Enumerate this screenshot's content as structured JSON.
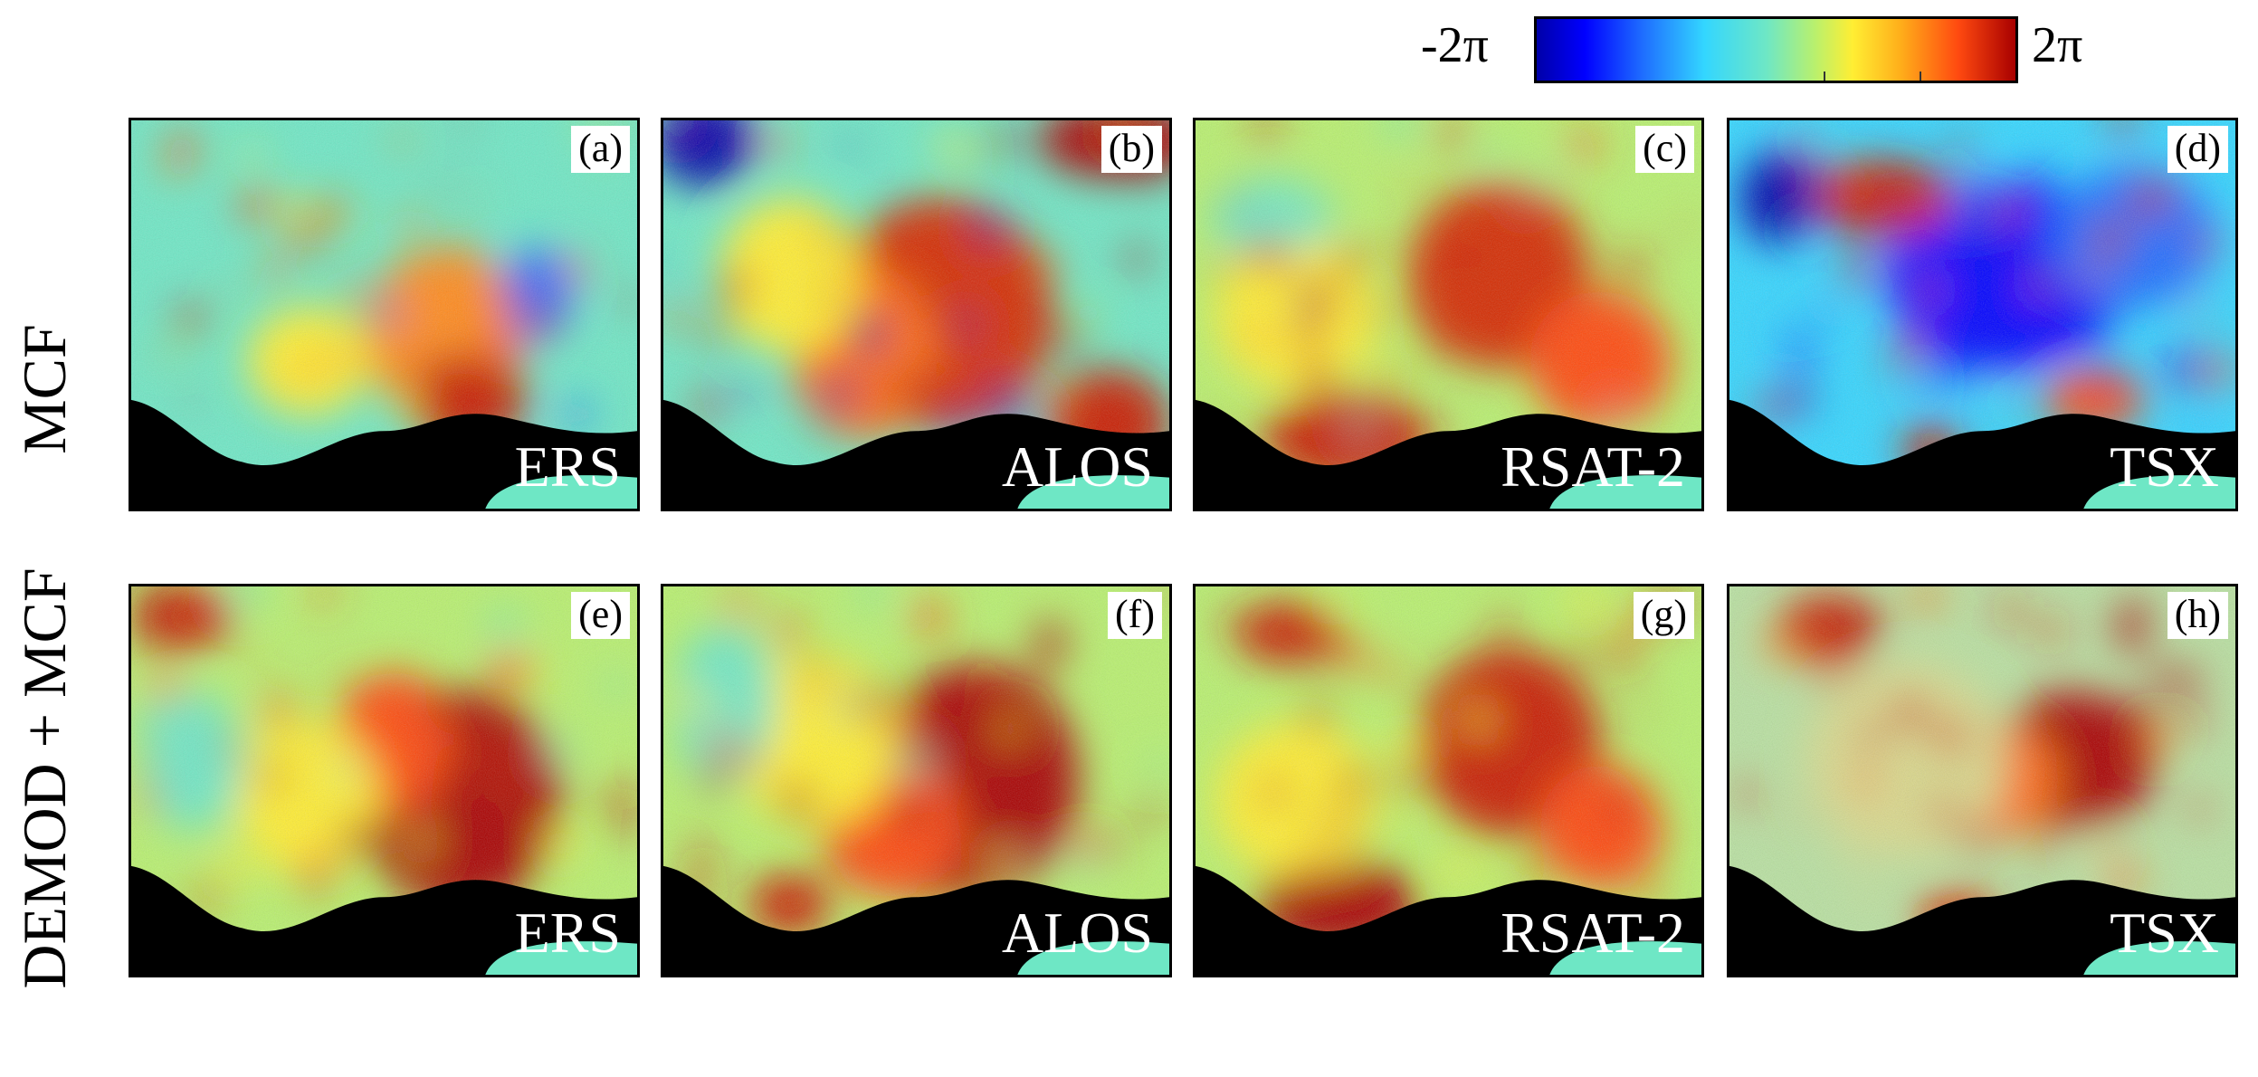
{
  "colorbar": {
    "min_label": "-2π",
    "max_label": "2π",
    "colors": [
      "#0000a8",
      "#0000ff",
      "#1e6cff",
      "#33d6ff",
      "#6ee7c5",
      "#b8f06e",
      "#ffee33",
      "#ffae1a",
      "#ff4a10",
      "#a80000"
    ]
  },
  "rows": [
    {
      "label": "MCF"
    },
    {
      "label": "DEMOD + MCF"
    }
  ],
  "panels": [
    {
      "letter": "(a)",
      "sensor": "ERS"
    },
    {
      "letter": "(b)",
      "sensor": "ALOS"
    },
    {
      "letter": "(c)",
      "sensor": "RSAT-2"
    },
    {
      "letter": "(d)",
      "sensor": "TSX"
    },
    {
      "letter": "(e)",
      "sensor": "ERS"
    },
    {
      "letter": "(f)",
      "sensor": "ALOS"
    },
    {
      "letter": "(g)",
      "sensor": "RSAT-2"
    },
    {
      "letter": "(h)",
      "sensor": "TSX"
    }
  ]
}
